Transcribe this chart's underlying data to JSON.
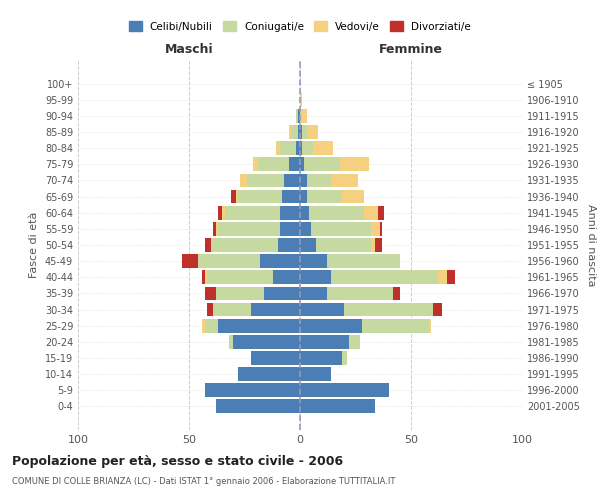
{
  "age_groups": [
    "0-4",
    "5-9",
    "10-14",
    "15-19",
    "20-24",
    "25-29",
    "30-34",
    "35-39",
    "40-44",
    "45-49",
    "50-54",
    "55-59",
    "60-64",
    "65-69",
    "70-74",
    "75-79",
    "80-84",
    "85-89",
    "90-94",
    "95-99",
    "100+"
  ],
  "birth_years": [
    "2001-2005",
    "1996-2000",
    "1991-1995",
    "1986-1990",
    "1981-1985",
    "1976-1980",
    "1971-1975",
    "1966-1970",
    "1961-1965",
    "1956-1960",
    "1951-1955",
    "1946-1950",
    "1941-1945",
    "1936-1940",
    "1931-1935",
    "1926-1930",
    "1921-1925",
    "1916-1920",
    "1911-1915",
    "1906-1910",
    "≤ 1905"
  ],
  "maschi_celibi": [
    38,
    43,
    28,
    22,
    30,
    37,
    22,
    16,
    12,
    18,
    10,
    9,
    9,
    8,
    7,
    5,
    2,
    1,
    1,
    0,
    0
  ],
  "maschi_coniugati": [
    0,
    0,
    0,
    0,
    2,
    6,
    17,
    22,
    30,
    28,
    30,
    28,
    25,
    20,
    17,
    14,
    7,
    3,
    1,
    0,
    0
  ],
  "maschi_vedovi": [
    0,
    0,
    0,
    0,
    0,
    1,
    0,
    0,
    1,
    0,
    0,
    1,
    1,
    1,
    3,
    2,
    2,
    1,
    0,
    0,
    0
  ],
  "maschi_divorziati": [
    0,
    0,
    0,
    0,
    0,
    0,
    3,
    5,
    1,
    7,
    3,
    1,
    2,
    2,
    0,
    0,
    0,
    0,
    0,
    0,
    0
  ],
  "femmine_celibi": [
    34,
    40,
    14,
    19,
    22,
    28,
    20,
    12,
    14,
    12,
    7,
    5,
    4,
    3,
    3,
    2,
    1,
    1,
    0,
    0,
    0
  ],
  "femmine_coniugati": [
    0,
    0,
    0,
    2,
    5,
    30,
    40,
    30,
    48,
    33,
    25,
    27,
    25,
    16,
    11,
    16,
    5,
    2,
    1,
    0,
    0
  ],
  "femmine_vedovi": [
    0,
    0,
    0,
    0,
    0,
    1,
    0,
    0,
    4,
    0,
    2,
    4,
    6,
    10,
    12,
    13,
    9,
    5,
    2,
    1,
    0
  ],
  "femmine_divorziati": [
    0,
    0,
    0,
    0,
    0,
    0,
    4,
    3,
    4,
    0,
    3,
    1,
    3,
    0,
    0,
    0,
    0,
    0,
    0,
    0,
    0
  ],
  "color_celibi": "#4a7eb5",
  "color_coniugati": "#c5d9a0",
  "color_vedovi": "#f5d080",
  "color_divorziati": "#c0302a",
  "title": "Popolazione per età, sesso e stato civile - 2006",
  "subtitle": "COMUNE DI COLLE BRIANZA (LC) - Dati ISTAT 1° gennaio 2006 - Elaborazione TUTTITALIA.IT",
  "xlabel_left": "Maschi",
  "xlabel_right": "Femmine",
  "ylabel_left": "Fasce di età",
  "ylabel_right": "Anni di nascita",
  "xmin": -100,
  "xmax": 100,
  "background_color": "#ffffff",
  "grid_color": "#cccccc"
}
